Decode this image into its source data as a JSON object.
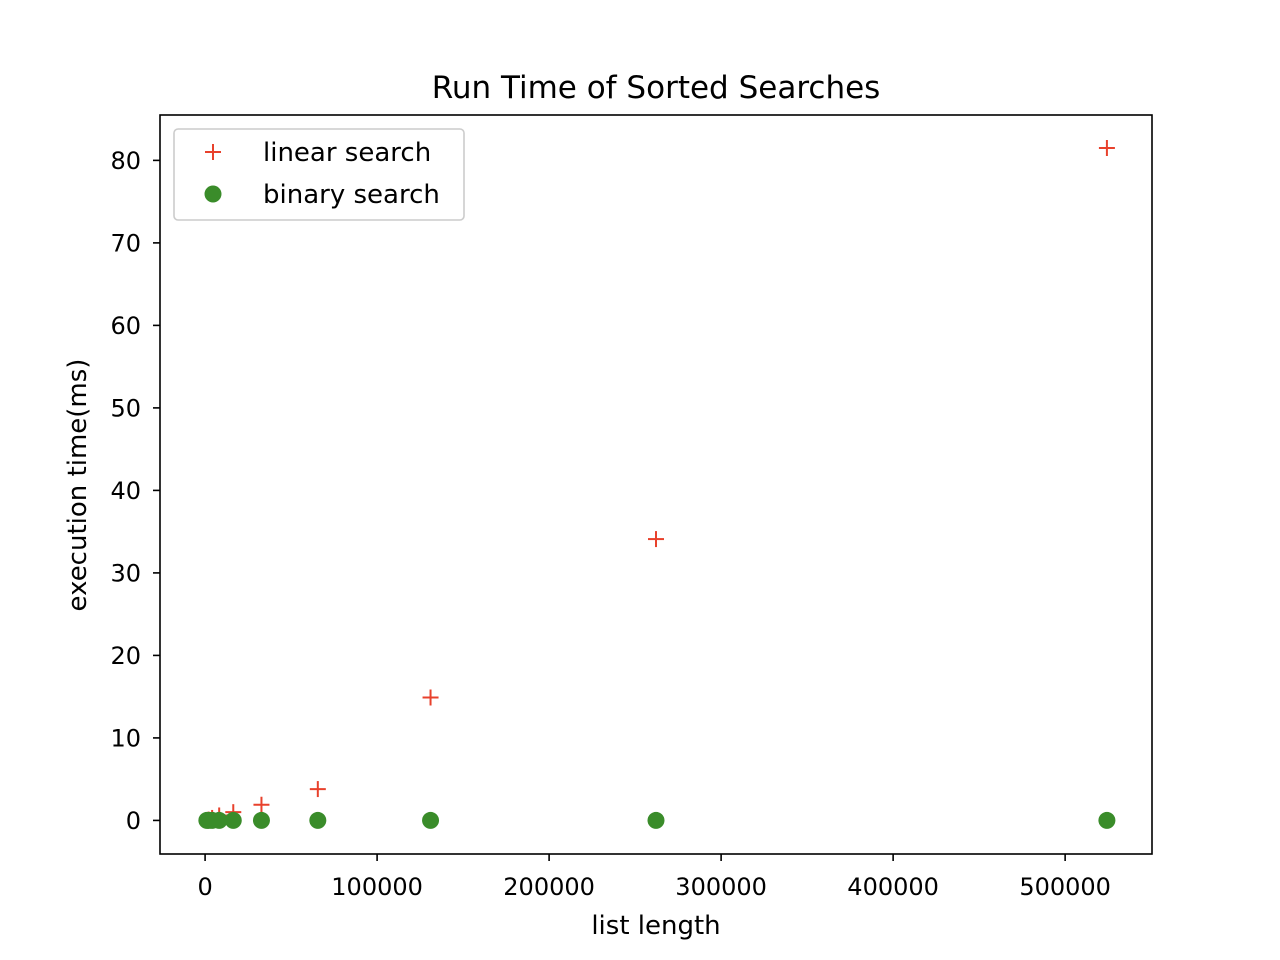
{
  "chart_data": {
    "type": "scatter",
    "title": "Run Time of Sorted Searches",
    "xlabel": "list length",
    "ylabel": "execution time(ms)",
    "xlim": [
      -26214,
      550502
    ],
    "ylim": [
      -4.07,
      85.5
    ],
    "x_ticks": [
      0,
      100000,
      200000,
      300000,
      400000,
      500000
    ],
    "y_ticks": [
      0,
      10,
      20,
      30,
      40,
      50,
      60,
      70,
      80
    ],
    "grid": false,
    "legend_position": "top-left",
    "series": [
      {
        "name": "linear search",
        "marker": "plus",
        "color": "#e8412c",
        "x": [
          1024,
          2048,
          4096,
          8192,
          16384,
          32768,
          65536,
          131072,
          262144,
          524288
        ],
        "y": [
          0.0,
          0.1,
          0.3,
          0.6,
          1.0,
          1.9,
          3.8,
          14.9,
          34.1,
          81.5
        ]
      },
      {
        "name": "binary search",
        "marker": "circle",
        "color": "#3a8c2a",
        "x": [
          1024,
          2048,
          4096,
          8192,
          16384,
          32768,
          65536,
          131072,
          262144,
          524288
        ],
        "y": [
          0,
          0,
          0,
          0,
          0,
          0,
          0,
          0,
          0,
          0
        ]
      }
    ]
  }
}
